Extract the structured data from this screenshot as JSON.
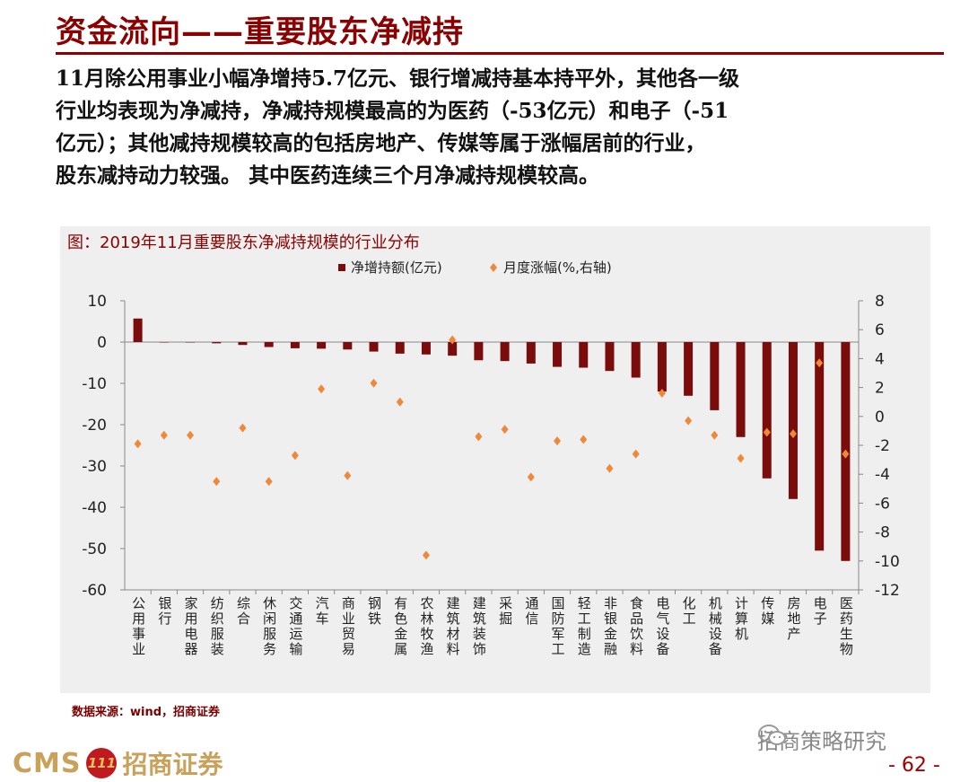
{
  "slide": {
    "title": "资金流向——重要股东净减持",
    "paragraph": "11月除公用事业小幅净增持5.7亿元、银行增减持基本持平外，其他各一级\n行业均表现为净减持，净减持规模最高的为医药（-53亿元）和电子（-51\n亿元）；其他减持规模较高的包括房地产、传媒等属于涨幅居前的行业，\n股东减持动力较强。 其中医药连续三个月净减持规模较高。",
    "source": "数据来源：wind，招商证券",
    "logo_cms": "CMS",
    "logo_circle": "111",
    "logo_cn": "招商证券",
    "wechat_text": "招商策略研究",
    "page_number": "- 62 -"
  },
  "colors": {
    "title": "#8b0000",
    "bar": "#7b0c0c",
    "marker": "#f0883a",
    "chart_bg": "#efefef"
  },
  "chart_data": {
    "type": "bar",
    "title": "图：2019年11月重要股东净减持规模的行业分布",
    "categories": [
      "公用事业",
      "银行",
      "家用电器",
      "纺织服装",
      "综合",
      "休闲服务",
      "交通运输",
      "汽车",
      "商业贸易",
      "钢铁",
      "有色金属",
      "农林牧渔",
      "建筑材料",
      "建筑装饰",
      "采掘",
      "通信",
      "国防军工",
      "轻工制造",
      "非银金融",
      "食品饮料",
      "电气设备",
      "化工",
      "机械设备",
      "计算机",
      "传媒",
      "房地产",
      "电子",
      "医药生物"
    ],
    "series": [
      {
        "name": "净增持额(亿元)",
        "kind": "bar",
        "axis": "left",
        "values": [
          5.7,
          0,
          -0.1,
          -0.3,
          -0.7,
          -1.2,
          -1.5,
          -1.6,
          -1.8,
          -2.3,
          -2.8,
          -3.0,
          -3.3,
          -4.4,
          -4.6,
          -5.2,
          -6.0,
          -6.2,
          -7.0,
          -8.6,
          -12.0,
          -13.0,
          -16.5,
          -23.0,
          -33.0,
          -38.0,
          -50.5,
          -53.0
        ]
      },
      {
        "name": "月度涨幅(%,右轴)",
        "kind": "scatter",
        "axis": "right",
        "values": [
          -1.9,
          -1.3,
          -1.3,
          -4.5,
          -0.8,
          -4.5,
          -2.7,
          1.9,
          -4.1,
          2.3,
          1.0,
          -9.6,
          5.3,
          -1.4,
          -0.9,
          -4.2,
          -1.7,
          -1.6,
          -3.6,
          -2.6,
          1.6,
          -0.3,
          -1.3,
          -2.9,
          -1.1,
          -1.2,
          3.7,
          -2.6
        ]
      }
    ],
    "ylim_left": [
      -60,
      10
    ],
    "yticks_left": [
      10,
      0,
      -10,
      -20,
      -30,
      -40,
      -50,
      -60
    ],
    "ylim_right": [
      -12,
      8
    ],
    "yticks_right": [
      8,
      6,
      4,
      2,
      0,
      -2,
      -4,
      -6,
      -8,
      -10,
      -12
    ],
    "legend_position": "top-center",
    "grid": false
  }
}
